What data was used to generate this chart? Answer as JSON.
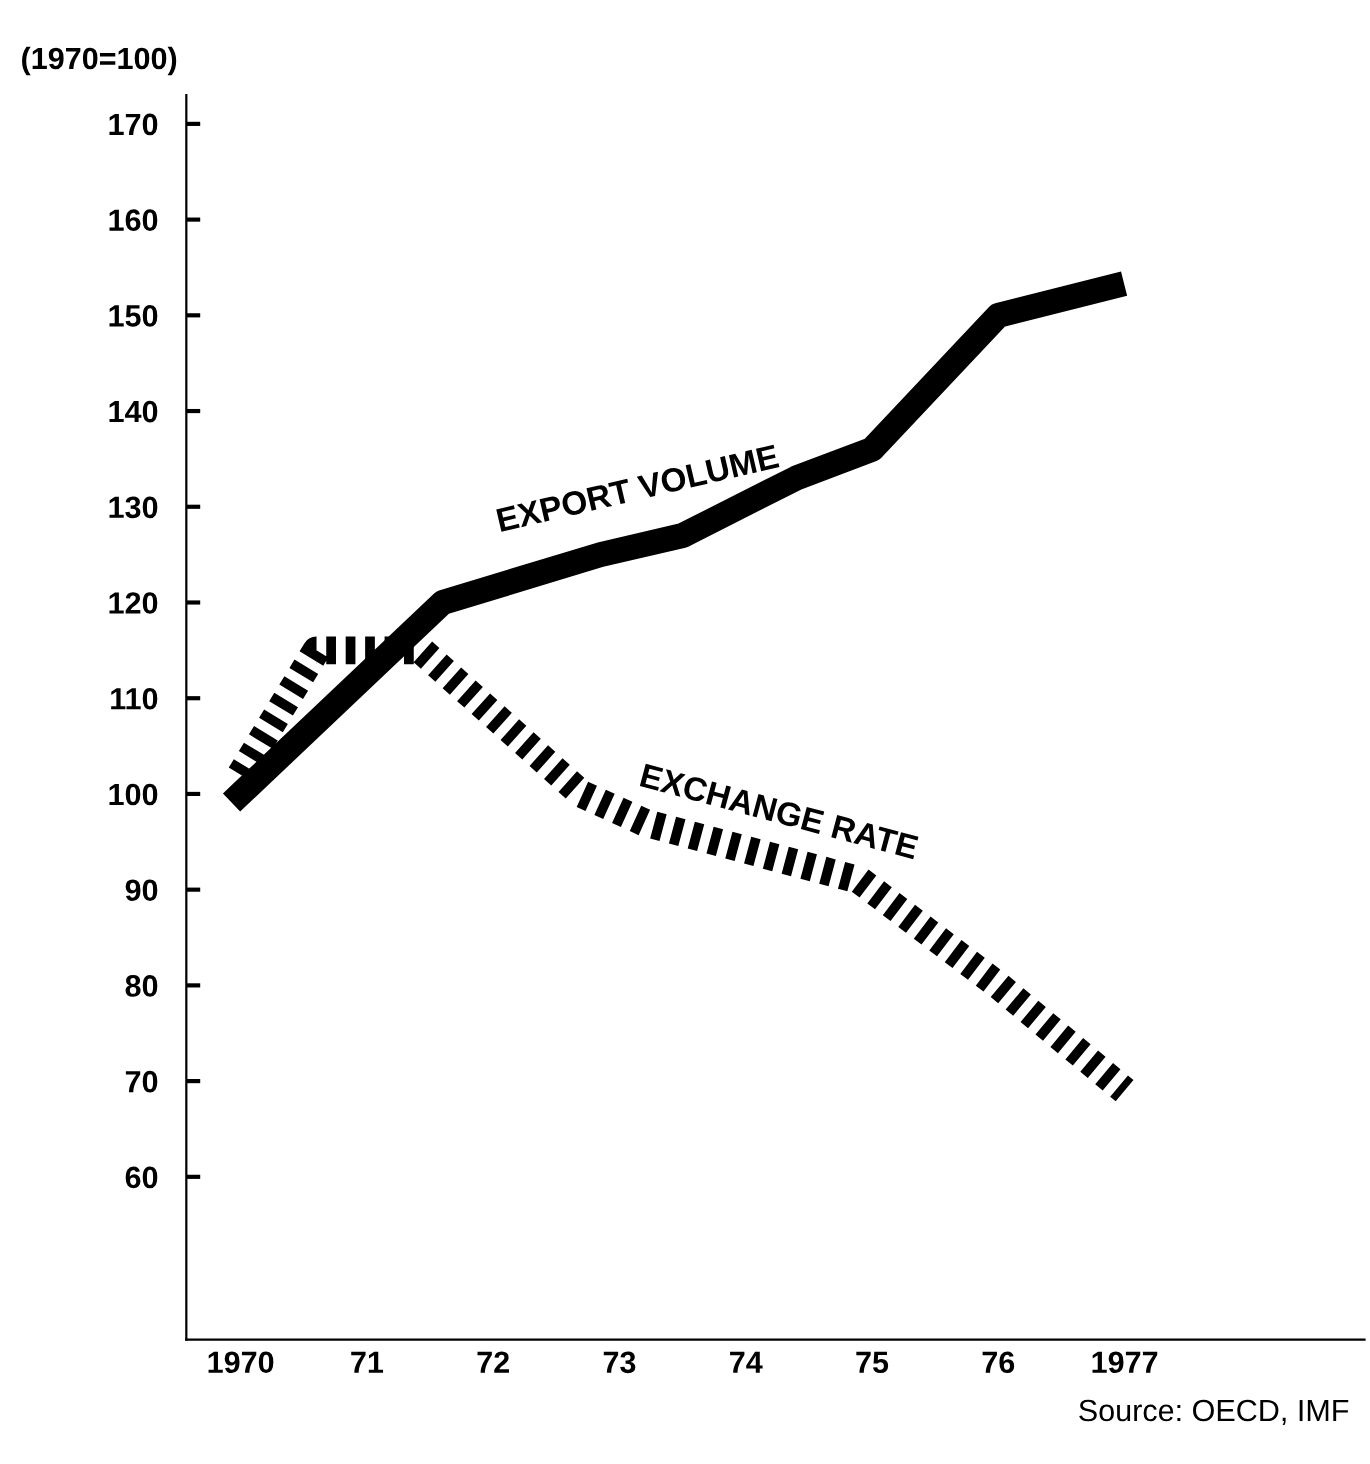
{
  "chart_data": {
    "type": "line",
    "ylabel": "(1970=100)",
    "annotations": [
      "Source: OECD, IMF"
    ],
    "xlim": [
      1969.57,
      1978.9
    ],
    "ylim": [
      43,
      173
    ],
    "xticks": [
      1970,
      {
        "value": 1971,
        "label": "71"
      },
      {
        "value": 1972,
        "label": "72"
      },
      {
        "value": 1973,
        "label": "73"
      },
      {
        "value": 1974,
        "label": "74"
      },
      {
        "value": 1975,
        "label": "75"
      },
      {
        "value": 1976,
        "label": "76"
      },
      1977
    ],
    "yticks": [
      60,
      70,
      80,
      90,
      100,
      110,
      120,
      130,
      140,
      150,
      160,
      170
    ],
    "grid": false,
    "legend": false,
    "marker": "none",
    "series": [
      {
        "name": "EXPORT VOLUME",
        "color": "#000000",
        "line_style": "solid",
        "x": [
          1970,
          1971.6,
          1972.85,
          1973.5,
          1974.4,
          1975,
          1976,
          1976.9
        ],
        "values": [
          100,
          120,
          125,
          127,
          133,
          136,
          150,
          153
        ]
      },
      {
        "name": "EXCHANGE RATE",
        "color": "#000000",
        "line_style": "dotted",
        "x": [
          1970,
          1970.6,
          1971.43,
          1972.7,
          1973.2,
          1974.9,
          1976,
          1977
        ],
        "values": [
          102,
          115,
          115,
          100,
          97,
          91,
          80,
          69
        ]
      }
    ]
  }
}
